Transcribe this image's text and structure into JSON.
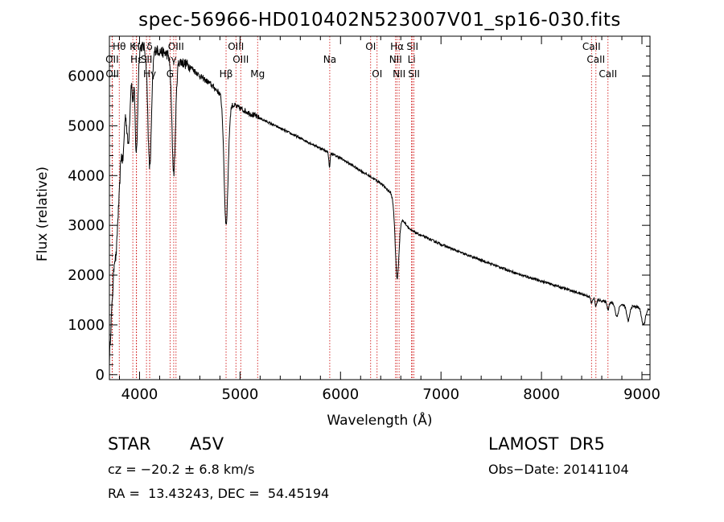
{
  "chart_data": {
    "type": "line",
    "title": "spec-56966-HD010402N523007V01_sp16-030.fits",
    "xlabel": "Wavelength (Å)",
    "ylabel": "Flux (relative)",
    "xlim": [
      3700,
      9080
    ],
    "ylim": [
      -100,
      6800
    ],
    "x_ticks": [
      4000,
      5000,
      6000,
      7000,
      8000,
      9000
    ],
    "y_ticks": [
      0,
      1000,
      2000,
      3000,
      4000,
      5000,
      6000
    ],
    "continuum": [
      [
        3700,
        400
      ],
      [
        3750,
        3400
      ],
      [
        3800,
        4900
      ],
      [
        3850,
        5700
      ],
      [
        3900,
        6300
      ],
      [
        3950,
        6550
      ],
      [
        4000,
        6600
      ],
      [
        4100,
        6580
      ],
      [
        4200,
        6500
      ],
      [
        4300,
        6420
      ],
      [
        4400,
        6300
      ],
      [
        4500,
        6200
      ],
      [
        4600,
        6000
      ],
      [
        4700,
        5850
      ],
      [
        4800,
        5650
      ],
      [
        4900,
        5450
      ],
      [
        5000,
        5350
      ],
      [
        5200,
        5150
      ],
      [
        5400,
        4950
      ],
      [
        5600,
        4750
      ],
      [
        5800,
        4550
      ],
      [
        6000,
        4350
      ],
      [
        6200,
        4100
      ],
      [
        6400,
        3850
      ],
      [
        6500,
        3650
      ],
      [
        6600,
        3150
      ],
      [
        6700,
        2900
      ],
      [
        6800,
        2800
      ],
      [
        7000,
        2620
      ],
      [
        7200,
        2450
      ],
      [
        7400,
        2300
      ],
      [
        7600,
        2150
      ],
      [
        7800,
        2000
      ],
      [
        8000,
        1880
      ],
      [
        8200,
        1750
      ],
      [
        8400,
        1620
      ],
      [
        8600,
        1480
      ],
      [
        8800,
        1400
      ],
      [
        9000,
        1350
      ],
      [
        9080,
        1300
      ]
    ],
    "absorption_features": [
      [
        3750,
        900,
        25
      ],
      [
        3771,
        800,
        12
      ],
      [
        3798,
        1000,
        12
      ],
      [
        3835,
        1100,
        14
      ],
      [
        3889,
        1500,
        18
      ],
      [
        3933,
        800,
        8
      ],
      [
        3968,
        2100,
        14
      ],
      [
        4101,
        2400,
        18
      ],
      [
        4340,
        2300,
        18
      ],
      [
        4861,
        2500,
        20
      ],
      [
        5890,
        300,
        6
      ],
      [
        6563,
        1400,
        18
      ],
      [
        8498,
        120,
        8
      ],
      [
        8542,
        150,
        8
      ],
      [
        8662,
        150,
        8
      ],
      [
        8750,
        250,
        15
      ],
      [
        8863,
        300,
        15
      ],
      [
        9015,
        350,
        18
      ]
    ],
    "lines": [
      {
        "label": "Hθ",
        "x": 3798,
        "row": 1
      },
      {
        "label": "OII",
        "x": 3727,
        "row": 2
      },
      {
        "label": "OII",
        "x": 3729,
        "row": 3
      },
      {
        "label": "K",
        "x": 3933,
        "row": 1
      },
      {
        "label": "H",
        "x": 3968,
        "row": 1
      },
      {
        "label": "Hε",
        "x": 3970,
        "row": 2
      },
      {
        "label": "Hγ",
        "x": 4101,
        "row": 3
      },
      {
        "label": "δ",
        "x": 4101,
        "row": 1
      },
      {
        "label": "SII",
        "x": 4069,
        "row": 2
      },
      {
        "label": "G",
        "x": 4304,
        "row": 3
      },
      {
        "label": "OIII",
        "x": 4363,
        "row": 1
      },
      {
        "label": "γ",
        "x": 4340,
        "row": 2
      },
      {
        "label": "Hβ",
        "x": 4861,
        "row": 3
      },
      {
        "label": "OIII",
        "x": 4959,
        "row": 1
      },
      {
        "label": "OIII",
        "x": 5007,
        "row": 2
      },
      {
        "label": "Mg",
        "x": 5175,
        "row": 3
      },
      {
        "label": "Na",
        "x": 5893,
        "row": 2
      },
      {
        "label": "OI",
        "x": 6300,
        "row": 1
      },
      {
        "label": "OI",
        "x": 6364,
        "row": 3
      },
      {
        "label": "Hα",
        "x": 6563,
        "row": 1
      },
      {
        "label": "NII",
        "x": 6548,
        "row": 2
      },
      {
        "label": "NII",
        "x": 6583,
        "row": 3
      },
      {
        "label": "SII",
        "x": 6716,
        "row": 1
      },
      {
        "label": "Li",
        "x": 6707,
        "row": 2
      },
      {
        "label": "SII",
        "x": 6731,
        "row": 3
      },
      {
        "label": "CaII",
        "x": 8498,
        "row": 1
      },
      {
        "label": "CaII",
        "x": 8542,
        "row": 2
      },
      {
        "label": "CaII",
        "x": 8662,
        "row": 3
      }
    ],
    "line_color": "#cc0000",
    "spectrum_color": "#000000",
    "grid": false
  },
  "info": {
    "object_type": "STAR",
    "subclass": "A5V",
    "survey": "LAMOST  DR5",
    "cz": "cz = −20.2 ± 6.8 km/s",
    "obs_date": "Obs−Date: 20141104",
    "coords": "RA =  13.43243, DEC =  54.45194"
  }
}
